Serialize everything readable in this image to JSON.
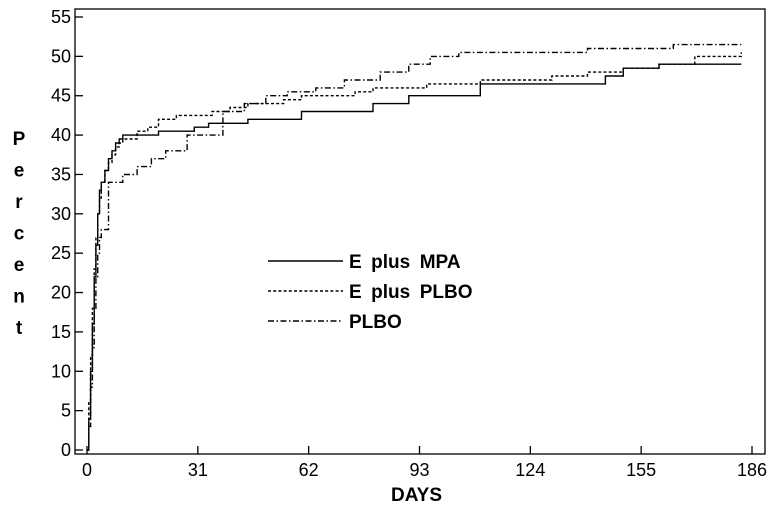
{
  "chart_data": {
    "type": "line",
    "title": "",
    "xlabel": "DAYS",
    "ylabel": "Percent",
    "xlim": [
      0,
      186
    ],
    "ylim": [
      0,
      55
    ],
    "x_ticks": [
      "0",
      "31",
      "62",
      "93",
      "124",
      "155",
      "186"
    ],
    "y_ticks": [
      "0",
      "5",
      "10",
      "15",
      "20",
      "25",
      "30",
      "35",
      "40",
      "45",
      "50",
      "55"
    ],
    "grid": false,
    "legend_position": "center",
    "series": [
      {
        "name": "E plus MPA",
        "style": "solid",
        "color": "#000000",
        "step": true,
        "x": [
          0,
          0.5,
          1,
          1.5,
          2,
          2.5,
          3,
          3.5,
          4,
          5,
          6,
          7,
          8,
          9,
          10,
          20,
          30,
          34,
          45,
          56,
          60,
          65,
          70,
          80,
          90,
          100,
          110,
          120,
          130,
          140,
          145,
          150,
          160,
          170,
          183
        ],
        "y": [
          0,
          4,
          10,
          16,
          22,
          26,
          30,
          33,
          34,
          35.5,
          37,
          38,
          39,
          39.5,
          40,
          40.5,
          41,
          41.5,
          42,
          42,
          43,
          43,
          43,
          44,
          45,
          45,
          46.5,
          46.5,
          46.5,
          46.5,
          47.5,
          48.5,
          49,
          49,
          49
        ]
      },
      {
        "name": "E plus PLBO",
        "style": "dotted",
        "color": "#000000",
        "step": true,
        "x": [
          0,
          0.5,
          1,
          1.5,
          2,
          2.5,
          3,
          3.5,
          4,
          5,
          6,
          7,
          8,
          9,
          10,
          14,
          17,
          20,
          25,
          35,
          40,
          45,
          55,
          60,
          70,
          75,
          80,
          95,
          110,
          125,
          130,
          140,
          150,
          160,
          164,
          170,
          183
        ],
        "y": [
          0,
          6,
          12,
          18,
          23,
          27,
          30,
          32,
          34,
          35.5,
          36.5,
          37.5,
          38.5,
          39,
          39.5,
          40.5,
          41,
          42,
          42.5,
          43,
          43.5,
          44,
          44.5,
          45,
          45,
          45.5,
          46,
          46.5,
          47,
          47,
          47.5,
          48,
          48.5,
          49,
          49,
          50,
          50.5
        ]
      },
      {
        "name": "PLBO",
        "style": "dash-dot",
        "color": "#000000",
        "step": true,
        "x": [
          0,
          0.5,
          1,
          1.5,
          2,
          2.5,
          3,
          3.5,
          4,
          6,
          10,
          14,
          18,
          22,
          28,
          38,
          44,
          50,
          56,
          64,
          72,
          82,
          90,
          96,
          104,
          140,
          164,
          183
        ],
        "y": [
          0,
          3,
          8,
          13,
          18,
          22,
          25,
          27,
          28,
          34,
          35,
          36,
          37,
          38,
          40,
          43,
          44,
          45,
          45.5,
          46,
          47,
          48,
          49,
          50,
          50.5,
          51,
          51.5,
          51.5
        ]
      }
    ]
  }
}
